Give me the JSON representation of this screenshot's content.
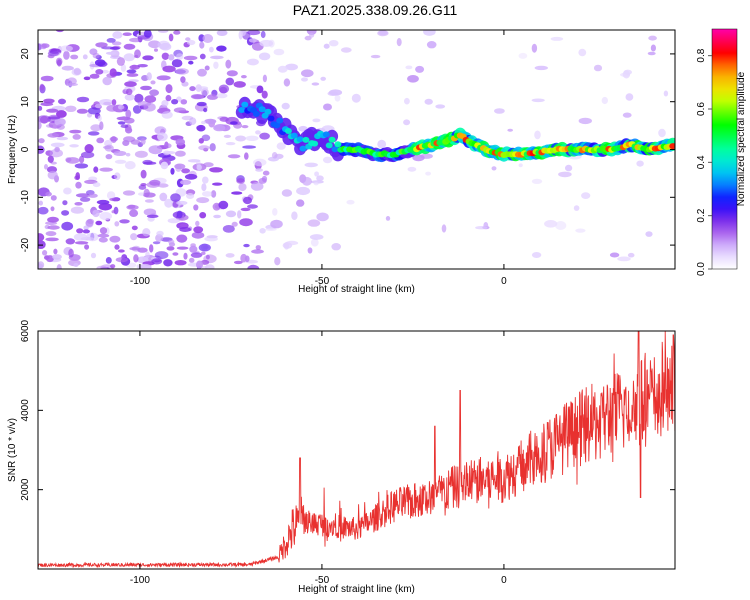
{
  "title": "PAZ1.2025.338.09.26.G11",
  "chart_data": [
    {
      "type": "heatmap",
      "name": "spectrogram",
      "xlabel": "Height of straight line (km)",
      "ylabel": "Frequency (Hz)",
      "xlim": [
        -128,
        47
      ],
      "ylim": [
        -25,
        25
      ],
      "xticks": [
        -100,
        -50,
        0
      ],
      "xtick_labels": [
        "-100",
        "-50",
        "0"
      ],
      "yticks": [
        -20,
        -10,
        0,
        10,
        20
      ],
      "ytick_labels": [
        "-20",
        "-10",
        "0",
        "10",
        "20"
      ],
      "colorbar": {
        "label": "Normalized spectral amplitude",
        "range": [
          0,
          0.9
        ],
        "ticks": [
          0,
          0.2,
          0.4,
          0.6,
          0.8
        ],
        "tick_labels": [
          "0.0",
          "0.2",
          "0.4",
          "0.6",
          "0.8"
        ]
      },
      "ridge": {
        "heights": [
          -72,
          -66,
          -60,
          -55,
          -50,
          -45,
          -40,
          -35,
          -30,
          -25,
          -20,
          -15,
          -12,
          -8,
          -5,
          0,
          5,
          10,
          15,
          20,
          25,
          30,
          35,
          40,
          47
        ],
        "frequency": [
          9,
          8,
          4,
          1,
          3,
          0,
          0,
          -1,
          -1,
          0,
          1,
          2,
          3,
          1,
          0,
          -1,
          -1,
          -0.5,
          0,
          0,
          0,
          0,
          1,
          0,
          1
        ]
      }
    },
    {
      "type": "line",
      "name": "snr",
      "xlabel": "Height of straight line (km)",
      "ylabel": "SNR (10 * v/v)",
      "xlim": [
        -128,
        47
      ],
      "ylim": [
        0,
        6000
      ],
      "xticks": [
        -100,
        -50,
        0
      ],
      "xtick_labels": [
        "-100",
        "-50",
        "0"
      ],
      "yticks": [
        2000,
        4000,
        6000
      ],
      "ytick_labels": [
        "2000",
        "4000",
        "6000"
      ],
      "trend_x": [
        -128,
        -70,
        -62,
        -58,
        -55,
        -40,
        -30,
        -20,
        -10,
        0,
        10,
        20,
        30,
        38,
        47
      ],
      "trend_y": [
        100,
        110,
        300,
        1000,
        1200,
        1000,
        1600,
        1800,
        2200,
        2300,
        2900,
        3500,
        3900,
        4200,
        4500
      ],
      "spikes": [
        {
          "x": -12,
          "y": 4500
        },
        {
          "x": -19,
          "y": 3600
        },
        {
          "x": 37,
          "y": 6000
        },
        {
          "x": 37.5,
          "y": 1800
        },
        {
          "x": 46.5,
          "y": 5900
        },
        {
          "x": -56,
          "y": 2800
        }
      ]
    }
  ]
}
